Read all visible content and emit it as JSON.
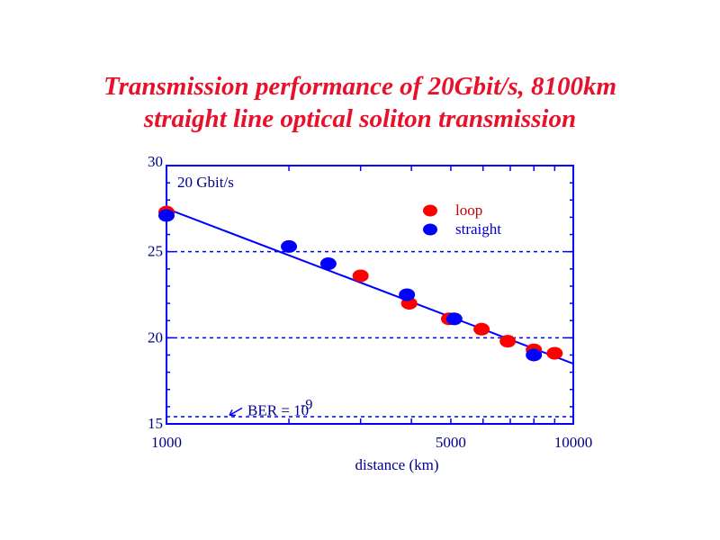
{
  "chart_data": {
    "type": "scatter",
    "title_lines": [
      "Transmission performance of 20Gbit/s, 8100km",
      "straight line optical soliton transmission"
    ],
    "xlabel": "distance (km)",
    "ylabel": "",
    "x_scale": "log",
    "xlim": [
      1000,
      10000
    ],
    "ylim": [
      15,
      30
    ],
    "x_ticks": [
      {
        "value": 1000,
        "label": "1000"
      },
      {
        "value": 5000,
        "label": "5000"
      },
      {
        "value": 10000,
        "label": "10000"
      }
    ],
    "y_ticks": [
      {
        "value": 15,
        "label": "15"
      },
      {
        "value": 20,
        "label": "20"
      },
      {
        "value": 25,
        "label": "25"
      },
      {
        "value": 30,
        "label": "30"
      }
    ],
    "grid": "horizontal dashed at 15, 20 and 25",
    "legend_position": "top-right",
    "annotations": {
      "rate": "20 Gbit/s",
      "ber_text": "BER = 10",
      "ber_exp": "-9"
    },
    "ber_level": 15.4,
    "fit_line": {
      "x": [
        1000,
        10000
      ],
      "y": [
        27.5,
        18.5
      ]
    },
    "series": [
      {
        "name": "loop",
        "color": "#ff0000",
        "points": [
          {
            "x": 1000,
            "y": 27.3
          },
          {
            "x": 3000,
            "y": 23.6
          },
          {
            "x": 3950,
            "y": 22.0
          },
          {
            "x": 4950,
            "y": 21.1
          },
          {
            "x": 5950,
            "y": 20.5
          },
          {
            "x": 6900,
            "y": 19.8
          },
          {
            "x": 8000,
            "y": 19.3
          },
          {
            "x": 9000,
            "y": 19.1
          }
        ]
      },
      {
        "name": "straight",
        "color": "#0000ff",
        "points": [
          {
            "x": 1000,
            "y": 27.1
          },
          {
            "x": 2000,
            "y": 25.3
          },
          {
            "x": 2500,
            "y": 24.3
          },
          {
            "x": 3900,
            "y": 22.5
          },
          {
            "x": 5100,
            "y": 21.1
          },
          {
            "x": 8000,
            "y": 19.0
          }
        ]
      }
    ],
    "colors": {
      "frame": "#0000ff",
      "title": "#e8102a",
      "text": "#00008b"
    }
  }
}
